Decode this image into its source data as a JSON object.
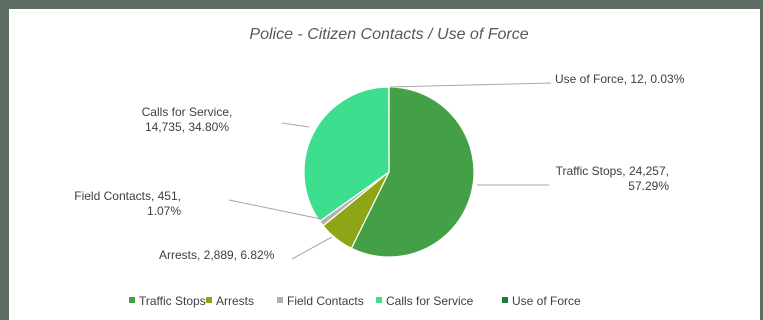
{
  "chart_data": {
    "type": "pie",
    "title": "Police - Citizen Contacts / Use of Force",
    "slices": [
      {
        "name": "Traffic Stops",
        "value": 24257,
        "percent": "57.29%",
        "color": "#43a047",
        "label_lines": [
          "Traffic Stops, 24,257,",
          "57.29%"
        ]
      },
      {
        "name": "Arrests",
        "value": 2889,
        "percent": "6.82%",
        "color": "#8ea516",
        "label_lines": [
          "Arrests, 2,889, 6.82%"
        ]
      },
      {
        "name": "Field Contacts",
        "value": 451,
        "percent": "1.07%",
        "color": "#b3b3b3",
        "label_lines": [
          "Field Contacts, 451,",
          "1.07%"
        ]
      },
      {
        "name": "Calls for Service",
        "value": 14735,
        "percent": "34.80%",
        "color": "#3ddf8e",
        "label_lines": [
          "Calls for Service,",
          "14,735, 34.80%"
        ]
      },
      {
        "name": "Use of Force",
        "value": 12,
        "percent": "0.03%",
        "color": "#1f7a3a",
        "label_lines": [
          "Use of Force, 12, 0.03%"
        ]
      }
    ],
    "legend_position": "bottom"
  }
}
